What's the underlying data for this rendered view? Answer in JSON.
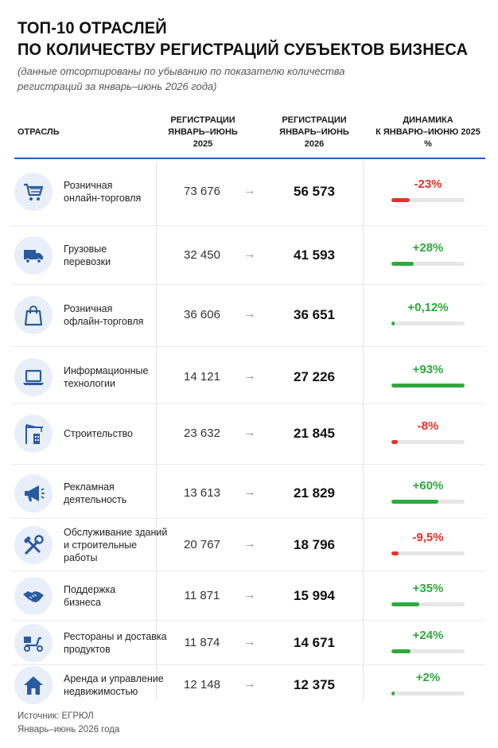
{
  "title_line1": "ТОП-10 ОТРАСЛЕЙ",
  "title_line2": "ПО КОЛИЧЕСТВУ РЕГИСТРАЦИЙ СУБЪЕКТОВ БИЗНЕСА",
  "subtitle": "(данные отсортированы по убыванию по показателю количества регистраций за январь–июнь 2026 года)",
  "columns": {
    "industry": "ОТРАСЛЬ",
    "reg2025_l1": "РЕГИСТРАЦИИ",
    "reg2025_l2": "ЯНВАРЬ–ИЮНЬ",
    "reg2025_l3": "2025",
    "reg2026_l1": "РЕГИСТРАЦИИ",
    "reg2026_l2": "ЯНВАРЬ–ИЮНЬ",
    "reg2026_l3": "2026",
    "dyn_l1": "ДИНАМИКА",
    "dyn_l2": "К ЯНВАРЮ–ИЮНЮ 2025",
    "dyn_l3": "%"
  },
  "arrow_glyph": "→",
  "colors": {
    "positive": "#2fa83f",
    "negative": "#e8302a",
    "accent": "#2b5ccf",
    "icon_color": "#2a5a9e",
    "icon_bg": "#e8eff8"
  },
  "chart_data": {
    "type": "table",
    "rows": [
      {
        "industry_l1": "Розничная",
        "industry_l2": "онлайн-торговля",
        "icon": "shopping-cart-icon",
        "reg_2025": "73 676",
        "reg_2026": "56 573",
        "change_label": "-23%",
        "change": -23
      },
      {
        "industry_l1": "Грузовые",
        "industry_l2": "перевозки",
        "icon": "truck-icon",
        "reg_2025": "32 450",
        "reg_2026": "41 593",
        "change_label": "+28%",
        "change": 28
      },
      {
        "industry_l1": "Розничная",
        "industry_l2": "офлайн-торговля",
        "icon": "shopping-bag-icon",
        "reg_2025": "36 606",
        "reg_2026": "36 651",
        "change_label": "+0,12%",
        "change": 0.12
      },
      {
        "industry_l1": "Информационные",
        "industry_l2": "технологии",
        "icon": "laptop-icon",
        "reg_2025": "14 121",
        "reg_2026": "27 226",
        "change_label": "+93%",
        "change": 93
      },
      {
        "industry_l1": "Строительство",
        "icon": "construction-crane-icon",
        "reg_2025": "23 632",
        "reg_2026": "21 845",
        "change_label": "-8%",
        "change": -8
      },
      {
        "industry_l1": "Рекламная",
        "industry_l2": "деятельность",
        "icon": "megaphone-icon",
        "reg_2025": "13 613",
        "reg_2026": "21 829",
        "change_label": "+60%",
        "change": 60
      },
      {
        "industry_l1": "Обслуживание зданий",
        "industry_l2": "и строительные",
        "industry_l3": "работы",
        "icon": "tools-icon",
        "reg_2025": "20 767",
        "reg_2026": "18 796",
        "change_label": "-9,5%",
        "change": -9.5
      },
      {
        "industry_l1": "Поддержка",
        "industry_l2": "бизнеса",
        "icon": "handshake-icon",
        "reg_2025": "11 871",
        "reg_2026": "15 994",
        "change_label": "+35%",
        "change": 35
      },
      {
        "industry_l1": "Рестораны и доставка",
        "industry_l2": "продуктов",
        "icon": "delivery-scooter-icon",
        "reg_2025": "11 874",
        "reg_2026": "14 671",
        "change_label": "+24%",
        "change": 24
      },
      {
        "industry_l1": "Аренда и управление",
        "industry_l2": "недвижимостью",
        "icon": "house-icon",
        "reg_2025": "12 148",
        "reg_2026": "12 375",
        "change_label": "+2%",
        "change": 2
      }
    ]
  },
  "footer_source": "Источник: ЕГРЮЛ",
  "footer_period": "Январь–июнь 2026 года"
}
